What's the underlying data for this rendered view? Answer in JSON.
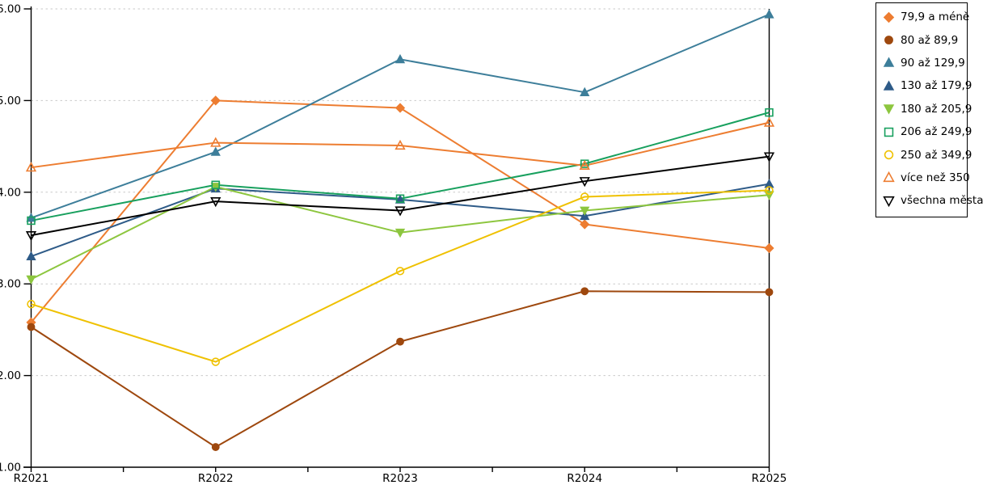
{
  "chart_data": {
    "type": "line",
    "title": "",
    "xlabel": "",
    "ylabel": "",
    "categories": [
      "R2021",
      "R2022",
      "R2023",
      "R2024",
      "R2025"
    ],
    "ylim": [
      1,
      6
    ],
    "yticks": [
      1,
      2,
      3,
      4,
      5,
      6
    ],
    "ytick_labels": [
      "1.00",
      "2.00",
      "3.00",
      "4.00",
      "5.00",
      "6.00"
    ],
    "grid": "horizontal-dashed",
    "grid_color": "#c9c9c9",
    "axis_color": "#000000",
    "legend_position": "top-right",
    "legend_border_color": "#000000",
    "series": [
      {
        "name": "79,9 a méně",
        "color": "#ED7D31",
        "marker": "diamond",
        "marker_style": "filled",
        "values": [
          2.58,
          5.0,
          4.92,
          3.65,
          3.39
        ]
      },
      {
        "name": "80 až 89,9",
        "color": "#9E480E",
        "marker": "circle",
        "marker_style": "filled",
        "values": [
          2.53,
          1.22,
          2.37,
          2.92,
          2.91
        ]
      },
      {
        "name": "90 až 129,9",
        "color": "#3D7E9A",
        "marker": "triangle-up",
        "marker_style": "filled",
        "values": [
          3.72,
          4.44,
          5.45,
          5.09,
          5.94
        ]
      },
      {
        "name": "130 až 179,9",
        "color": "#2E5B88",
        "marker": "triangle-up",
        "marker_style": "filled",
        "values": [
          3.3,
          4.04,
          3.92,
          3.74,
          4.09
        ]
      },
      {
        "name": "180 až 205,9",
        "color": "#8DC63F",
        "marker": "triangle-down",
        "marker_style": "filled",
        "values": [
          3.05,
          4.06,
          3.56,
          3.8,
          3.97
        ]
      },
      {
        "name": "206 až 249,9",
        "color": "#18A05E",
        "marker": "square",
        "marker_style": "open",
        "values": [
          3.69,
          4.08,
          3.93,
          4.31,
          4.87
        ]
      },
      {
        "name": "250 až 349,9",
        "color": "#EFC100",
        "marker": "circle",
        "marker_style": "open",
        "values": [
          2.78,
          2.15,
          3.14,
          3.95,
          4.02
        ]
      },
      {
        "name": "více než 350",
        "color": "#ED7D31",
        "marker": "triangle-up",
        "marker_style": "open",
        "values": [
          4.27,
          4.54,
          4.51,
          4.29,
          4.76
        ]
      },
      {
        "name": "všechna města",
        "color": "#000000",
        "marker": "triangle-down",
        "marker_style": "open",
        "values": [
          3.53,
          3.9,
          3.8,
          4.12,
          4.39
        ]
      }
    ]
  }
}
